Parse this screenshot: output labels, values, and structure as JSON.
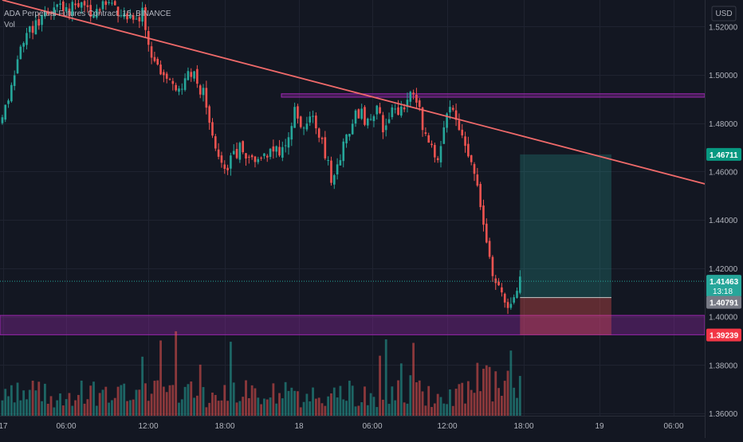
{
  "header": {
    "symbol_line": "ADA Perpetual Futures Contract, 15, BINANCE",
    "indicator": "Vol",
    "currency": "USD"
  },
  "chart_data": {
    "type": "candlestick",
    "interval": "15",
    "exchange": "BINANCE",
    "price_axis": {
      "ticks": [
        "1.52000",
        "1.50000",
        "1.48000",
        "1.46000",
        "1.44000",
        "1.42000",
        "1.40000",
        "1.38000",
        "1.36000"
      ],
      "range": [
        1.359,
        1.531
      ]
    },
    "time_axis": {
      "labels": [
        "17",
        "06:00",
        "12:00",
        "18:00",
        "18",
        "06:00",
        "12:00",
        "18:00",
        "19",
        "06:00"
      ]
    },
    "price_labels": {
      "target": "1.46711",
      "last_price": "1.41463",
      "countdown": "13:18",
      "entry": "1.40791",
      "stop": "1.39239"
    },
    "levels": {
      "target": 1.46711,
      "last": 1.41463,
      "entry": 1.40791,
      "stop": 1.39239
    },
    "trendline": {
      "from": [
        0,
        1.531
      ],
      "to": [
        235,
        1.4535
      ]
    },
    "resistance_zone": [
      1.4908,
      1.4922
    ],
    "support_zone": [
      1.3925,
      1.4005
    ],
    "position": {
      "type": "long",
      "start_bar": 170,
      "end_bar": 200
    },
    "colors": {
      "up": "#26a69a",
      "down": "#ef5350",
      "trendline": "#f06a6a",
      "zone": "#9c27b0",
      "target_label": "#089981",
      "stop_label": "#f23645",
      "entry_label": "#787b86"
    },
    "close_path": [
      [
        0,
        1.483
      ],
      [
        3,
        1.493
      ],
      [
        6,
        1.512
      ],
      [
        10,
        1.52
      ],
      [
        14,
        1.525
      ],
      [
        18,
        1.529
      ],
      [
        22,
        1.527
      ],
      [
        26,
        1.53
      ],
      [
        30,
        1.526
      ],
      [
        36,
        1.529
      ],
      [
        42,
        1.524
      ],
      [
        46,
        1.525
      ],
      [
        48,
        1.51
      ],
      [
        51,
        1.502
      ],
      [
        55,
        1.497
      ],
      [
        59,
        1.496
      ],
      [
        62,
        1.501
      ],
      [
        66,
        1.492
      ],
      [
        68,
        1.478
      ],
      [
        71,
        1.466
      ],
      [
        74,
        1.463
      ],
      [
        78,
        1.47
      ],
      [
        82,
        1.463
      ],
      [
        86,
        1.467
      ],
      [
        90,
        1.468
      ],
      [
        93,
        1.471
      ],
      [
        96,
        1.484
      ],
      [
        99,
        1.479
      ],
      [
        102,
        1.482
      ],
      [
        105,
        1.471
      ],
      [
        108,
        1.458
      ],
      [
        111,
        1.467
      ],
      [
        114,
        1.478
      ],
      [
        117,
        1.485
      ],
      [
        120,
        1.48
      ],
      [
        123,
        1.487
      ],
      [
        125,
        1.478
      ],
      [
        128,
        1.484
      ],
      [
        131,
        1.486
      ],
      [
        134,
        1.492
      ],
      [
        137,
        1.484
      ],
      [
        140,
        1.471
      ],
      [
        143,
        1.466
      ],
      [
        146,
        1.482
      ],
      [
        148,
        1.487
      ],
      [
        151,
        1.474
      ],
      [
        154,
        1.461
      ],
      [
        157,
        1.447
      ],
      [
        159,
        1.433
      ],
      [
        161,
        1.418
      ],
      [
        164,
        1.411
      ],
      [
        166,
        1.404
      ],
      [
        168,
        1.409
      ],
      [
        170,
        1.414
      ]
    ]
  }
}
